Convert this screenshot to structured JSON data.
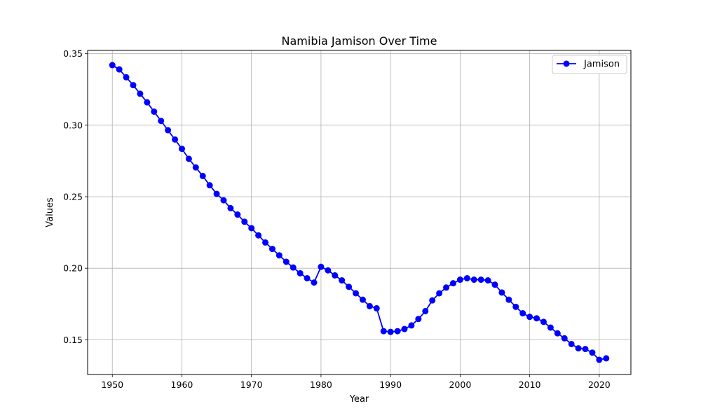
{
  "chart_data": {
    "type": "line",
    "title": "Namibia Jamison Over Time",
    "xlabel": "Year",
    "ylabel": "Values",
    "xlim": [
      1946.45,
      2024.55
    ],
    "ylim": [
      0.1257,
      0.3523
    ],
    "xticks": [
      1950,
      1960,
      1970,
      1980,
      1990,
      2000,
      2010,
      2020
    ],
    "yticks": [
      0.15,
      0.2,
      0.25,
      0.3,
      0.35
    ],
    "ytick_labels": [
      "0.15",
      "0.20",
      "0.25",
      "0.30",
      "0.35"
    ],
    "grid": true,
    "legend_position": "top-right",
    "series": [
      {
        "name": "Jamison",
        "color": "#0000ff",
        "marker": "circle",
        "x": [
          1950,
          1951,
          1952,
          1953,
          1954,
          1955,
          1956,
          1957,
          1958,
          1959,
          1960,
          1961,
          1962,
          1963,
          1964,
          1965,
          1966,
          1967,
          1968,
          1969,
          1970,
          1971,
          1972,
          1973,
          1974,
          1975,
          1976,
          1977,
          1978,
          1979,
          1980,
          1981,
          1982,
          1983,
          1984,
          1985,
          1986,
          1987,
          1988,
          1989,
          1990,
          1991,
          1992,
          1993,
          1994,
          1995,
          1996,
          1997,
          1998,
          1999,
          2000,
          2001,
          2002,
          2003,
          2004,
          2005,
          2006,
          2007,
          2008,
          2009,
          2010,
          2011,
          2012,
          2013,
          2014,
          2015,
          2016,
          2017,
          2018,
          2019,
          2020,
          2021
        ],
        "y": [
          0.342,
          0.339,
          0.3335,
          0.328,
          0.322,
          0.316,
          0.3095,
          0.303,
          0.2965,
          0.29,
          0.2835,
          0.2765,
          0.2705,
          0.2645,
          0.258,
          0.252,
          0.2475,
          0.242,
          0.2375,
          0.2325,
          0.228,
          0.223,
          0.218,
          0.2135,
          0.209,
          0.2045,
          0.2005,
          0.1965,
          0.193,
          0.19,
          0.201,
          0.1985,
          0.195,
          0.1915,
          0.187,
          0.1825,
          0.178,
          0.1735,
          0.172,
          0.156,
          0.1555,
          0.156,
          0.1575,
          0.16,
          0.1645,
          0.17,
          0.1775,
          0.1825,
          0.1865,
          0.1895,
          0.192,
          0.193,
          0.192,
          0.192,
          0.1915,
          0.1885,
          0.183,
          0.178,
          0.173,
          0.1685,
          0.166,
          0.165,
          0.1625,
          0.1585,
          0.1545,
          0.151,
          0.147,
          0.144,
          0.1435,
          0.141,
          0.136,
          0.137
        ]
      }
    ]
  }
}
